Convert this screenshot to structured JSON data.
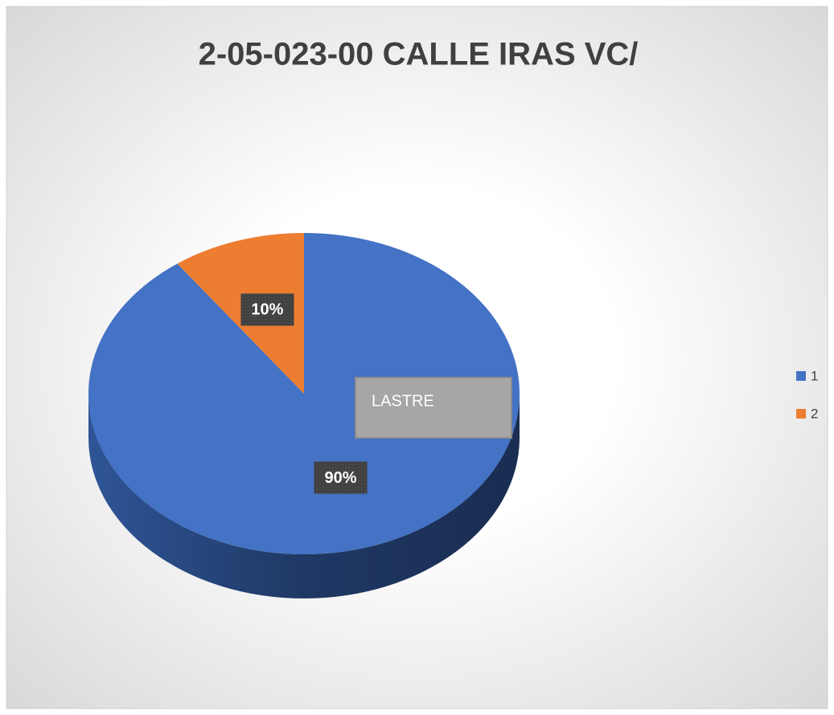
{
  "chart_data": {
    "type": "pie",
    "title": "2-05-023-00 CALLE IRAS VC/",
    "categories": [
      "1",
      "2"
    ],
    "values": [
      90,
      10
    ],
    "value_labels": [
      "90%",
      "10%"
    ],
    "colors": [
      "#4472c4",
      "#ed7d31"
    ],
    "annotation": "LASTRE",
    "legend": "right"
  }
}
